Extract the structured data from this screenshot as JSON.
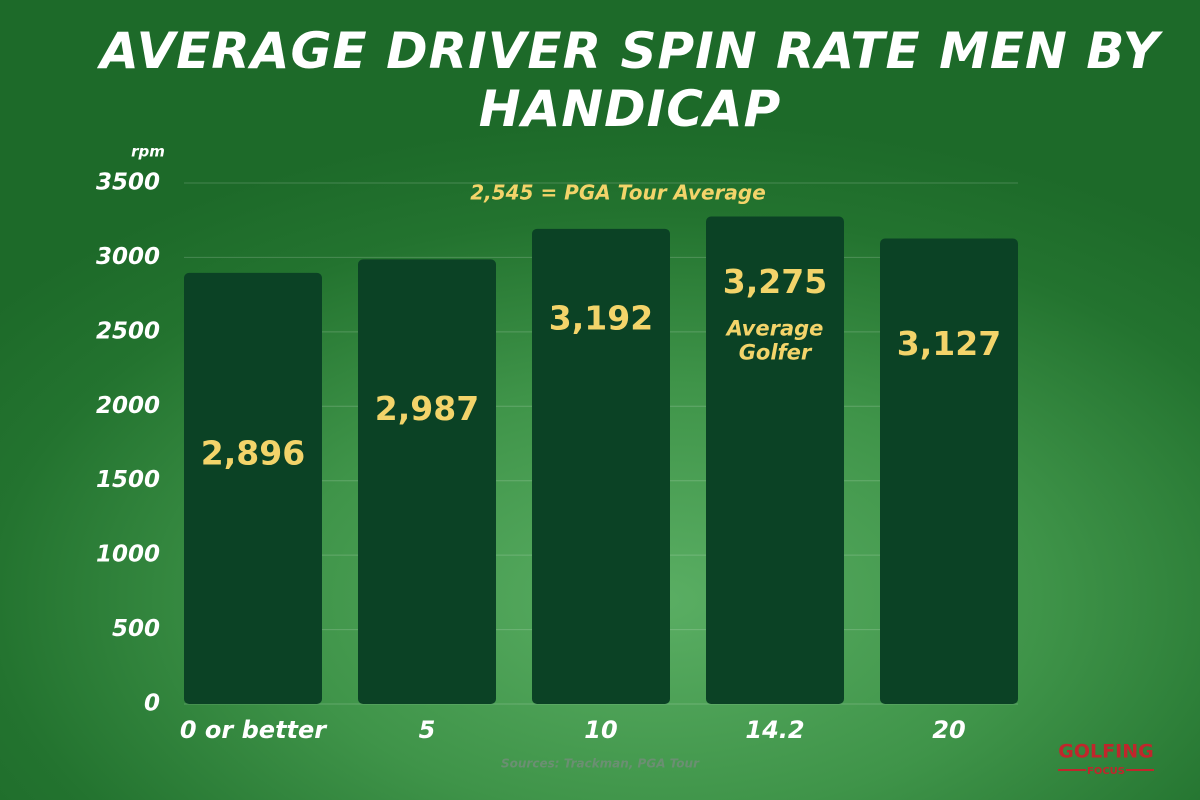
{
  "chart_data": {
    "type": "bar",
    "title": "AVERAGE DRIVER SPIN RATE  MEN BY HANDICAP",
    "y_label": "rpm",
    "annotation": "2,545 = PGA Tour Average",
    "categories": [
      "0 or better",
      "5",
      "10",
      "14.2",
      "20"
    ],
    "values": [
      2896,
      2987,
      3192,
      3275,
      3127
    ],
    "value_labels": [
      "2,896",
      "2,987",
      "3,192",
      "3,275",
      "3,127"
    ],
    "bar_note": "Average Golfer",
    "color": "#0b4225",
    "label_color": "#f3d46a",
    "ylim": [
      0,
      3500
    ],
    "yticks": [
      0,
      500,
      1000,
      1500,
      2000,
      2500,
      3000,
      3500
    ],
    "grid": true,
    "source": "Sources: Trackman, PGA Tour",
    "logo": {
      "top": "GOLFING",
      "bottom": "FOCUS"
    }
  }
}
